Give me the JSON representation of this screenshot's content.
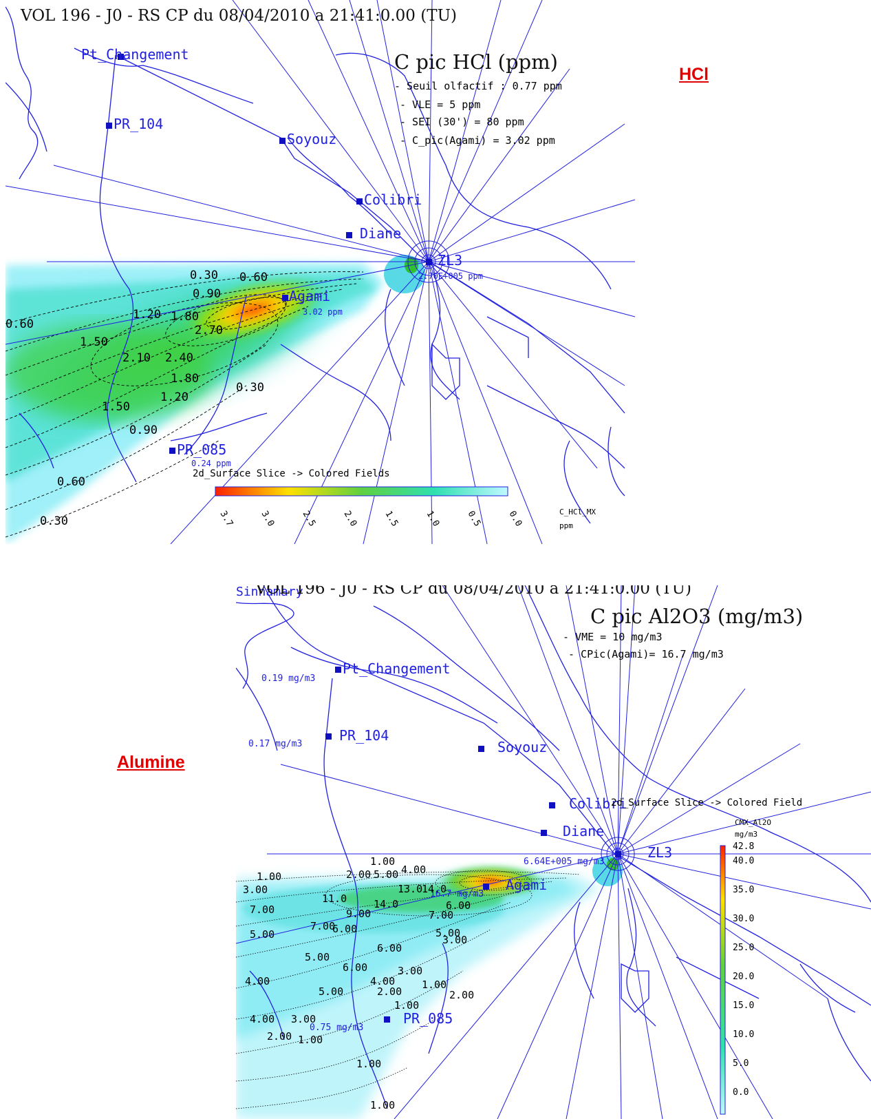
{
  "panels": [
    {
      "id": "hcl",
      "side_label": "HCl",
      "header": "VOL 196 - J0 - RS CP du 08/04/2010 a 21:41:0.00 (TU)",
      "title": "C pic HCl (ppm)",
      "thresholds": [
        "- Seuil olfactif : 0.77 ppm",
        "- VLE = 5 ppm",
        "- SEI (30') = 80 ppm",
        "- C_pic(Agami) = 3.02 ppm"
      ],
      "stations": [
        {
          "name": "Pt_Changement",
          "value": ""
        },
        {
          "name": "PR_104",
          "value": ""
        },
        {
          "name": "Soyouz",
          "value": ""
        },
        {
          "name": "Colibri",
          "value": ""
        },
        {
          "name": "Diane",
          "value": ""
        },
        {
          "name": "ZL3",
          "value": "2.70E+005 ppm"
        },
        {
          "name": "Agami",
          "value": "3.02 ppm"
        },
        {
          "name": "PR_085",
          "value": "0.24 ppm"
        }
      ],
      "contour_labels": [
        "0.30",
        "0.60",
        "0.90",
        "1.20",
        "1.50",
        "1.80",
        "2.10",
        "2.40",
        "2.70",
        "0.60",
        "1.50",
        "1.20",
        "1.80",
        "0.30",
        "0.90",
        "0.60",
        "0.30"
      ],
      "colorbar": {
        "caption": "2d_Surface Slice -> Colored Fields",
        "variable": "C_HCl_MX",
        "unit": "ppm",
        "ticks": [
          "3.7",
          "3.0",
          "2.5",
          "2.0",
          "1.5",
          "1.0",
          "0.5",
          "0.0"
        ]
      }
    },
    {
      "id": "alumine",
      "side_label": "Alumine",
      "header": "VOL 196 - J0 - RS CP du 08/04/2010 a 21:41:0.00 (TU)",
      "corner_town": "Sinnamary",
      "title": "C pic Al2O3 (mg/m3)",
      "thresholds": [
        "- VME = 10 mg/m3",
        "- CPic(Agami)= 16.7 mg/m3"
      ],
      "stations": [
        {
          "name": "Pt_Changement",
          "value": "0.19 mg/m3"
        },
        {
          "name": "PR_104",
          "value": "0.17 mg/m3"
        },
        {
          "name": "Soyouz",
          "value": ""
        },
        {
          "name": "Colibri",
          "value": ""
        },
        {
          "name": "Diane",
          "value": ""
        },
        {
          "name": "ZL3",
          "value": "6.64E+005 mg/m3"
        },
        {
          "name": "Agami",
          "value": "16.7 mg/m3"
        },
        {
          "name": "PR_085",
          "value": "0.75 mg/m3"
        }
      ],
      "contour_labels": [
        "1.00",
        "3.00",
        "7.00",
        "5.00",
        "11.0",
        "2.00",
        "5.00",
        "4.00",
        "1.00",
        "13.0",
        "14.0",
        "14.0",
        "9.00",
        "7.00",
        "6.00",
        "7.00",
        "6.00",
        "5.00",
        "6.00",
        "3.00",
        "6.00",
        "5.00",
        "4.00",
        "3.00",
        "4.00",
        "2.00",
        "5.00",
        "4.00",
        "3.00",
        "2.00",
        "1.00",
        "2.00",
        "1.00",
        "1.00",
        "1.00",
        "1.00"
      ],
      "colorbar": {
        "caption": "2d_Surface Slice -> Colored Field",
        "variable": "CMX_Al2O",
        "unit": "mg/m3",
        "ticks": [
          "42.8",
          "40.0",
          "35.0",
          "30.0",
          "25.0",
          "20.0",
          "15.0",
          "10.0",
          "5.0",
          "0.0"
        ]
      }
    }
  ],
  "colors": {
    "map_lines": "#2020e0",
    "side_label": "#e00000"
  }
}
